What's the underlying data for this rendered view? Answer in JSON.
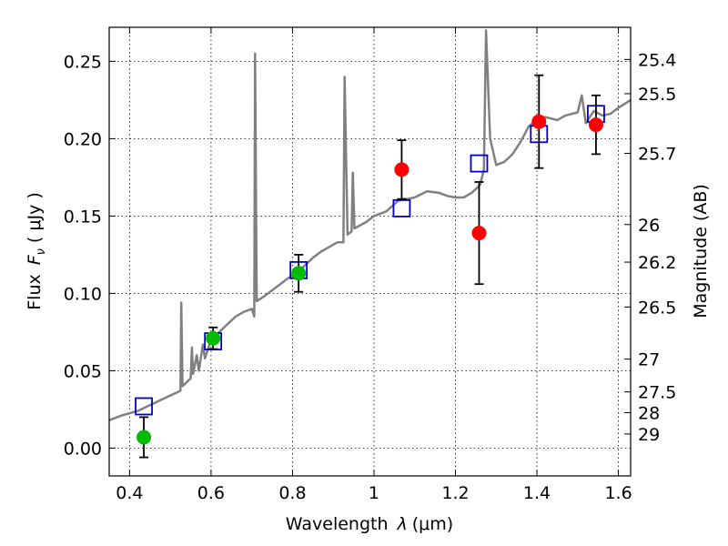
{
  "chart_data": {
    "type": "scatter",
    "title": "",
    "xlabel_text": "Wavelength",
    "xlabel_symbol": "λ",
    "xlabel_unit": "(μm)",
    "ylabel_text": "Flux",
    "ylabel_symbol": "F",
    "ylabel_sub": "ν",
    "ylabel_unit": "( μJy )",
    "y2label": "Magnitude (AB)",
    "xlim": [
      0.35,
      1.63
    ],
    "ylim": [
      -0.018,
      0.272
    ],
    "grid": true,
    "x_ticks": [
      {
        "value": 0.4,
        "label": "0.4"
      },
      {
        "value": 0.6,
        "label": "0.6"
      },
      {
        "value": 0.8,
        "label": "0.8"
      },
      {
        "value": 1.0,
        "label": "1"
      },
      {
        "value": 1.2,
        "label": "1.2"
      },
      {
        "value": 1.4,
        "label": "1.4"
      },
      {
        "value": 1.6,
        "label": "1.6"
      }
    ],
    "y_ticks": [
      {
        "value": 0.0,
        "label": "0.00"
      },
      {
        "value": 0.05,
        "label": "0.05"
      },
      {
        "value": 0.1,
        "label": "0.10"
      },
      {
        "value": 0.15,
        "label": "0.15"
      },
      {
        "value": 0.2,
        "label": "0.20"
      },
      {
        "value": 0.25,
        "label": "0.25"
      }
    ],
    "y2_ticks": [
      {
        "flux": 0.2512,
        "label": "25.4"
      },
      {
        "flux": 0.2291,
        "label": "25.5"
      },
      {
        "flux": 0.1905,
        "label": "25.7"
      },
      {
        "flux": 0.1445,
        "label": "26"
      },
      {
        "flux": 0.1202,
        "label": "26.2"
      },
      {
        "flux": 0.0912,
        "label": "26.5"
      },
      {
        "flux": 0.0575,
        "label": "27"
      },
      {
        "flux": 0.0363,
        "label": "27.5"
      },
      {
        "flux": 0.0229,
        "label": "28"
      },
      {
        "flux": 0.0091,
        "label": "29"
      }
    ],
    "series": [
      {
        "kind": "line",
        "color": "#808080",
        "points": [
          [
            0.35,
            0.018
          ],
          [
            0.38,
            0.021
          ],
          [
            0.42,
            0.024
          ],
          [
            0.46,
            0.029
          ],
          [
            0.5,
            0.034
          ],
          [
            0.525,
            0.037
          ],
          [
            0.527,
            0.094
          ],
          [
            0.53,
            0.04
          ],
          [
            0.55,
            0.045
          ],
          [
            0.553,
            0.065
          ],
          [
            0.556,
            0.048
          ],
          [
            0.565,
            0.06
          ],
          [
            0.57,
            0.05
          ],
          [
            0.58,
            0.067
          ],
          [
            0.585,
            0.058
          ],
          [
            0.6,
            0.07
          ],
          [
            0.62,
            0.075
          ],
          [
            0.64,
            0.08
          ],
          [
            0.66,
            0.085
          ],
          [
            0.68,
            0.088
          ],
          [
            0.7,
            0.09
          ],
          [
            0.706,
            0.085
          ],
          [
            0.708,
            0.255
          ],
          [
            0.712,
            0.095
          ],
          [
            0.73,
            0.098
          ],
          [
            0.75,
            0.102
          ],
          [
            0.77,
            0.106
          ],
          [
            0.79,
            0.11
          ],
          [
            0.81,
            0.113
          ],
          [
            0.83,
            0.118
          ],
          [
            0.85,
            0.123
          ],
          [
            0.87,
            0.127
          ],
          [
            0.89,
            0.13
          ],
          [
            0.91,
            0.133
          ],
          [
            0.925,
            0.133
          ],
          [
            0.928,
            0.24
          ],
          [
            0.935,
            0.138
          ],
          [
            0.945,
            0.14
          ],
          [
            0.948,
            0.178
          ],
          [
            0.952,
            0.142
          ],
          [
            0.98,
            0.146
          ],
          [
            1.0,
            0.15
          ],
          [
            1.03,
            0.153
          ],
          [
            1.06,
            0.16
          ],
          [
            1.1,
            0.162
          ],
          [
            1.13,
            0.166
          ],
          [
            1.16,
            0.165
          ],
          [
            1.18,
            0.163
          ],
          [
            1.2,
            0.162
          ],
          [
            1.22,
            0.162
          ],
          [
            1.24,
            0.165
          ],
          [
            1.26,
            0.17
          ],
          [
            1.27,
            0.18
          ],
          [
            1.275,
            0.27
          ],
          [
            1.285,
            0.2
          ],
          [
            1.3,
            0.183
          ],
          [
            1.32,
            0.185
          ],
          [
            1.34,
            0.19
          ],
          [
            1.36,
            0.198
          ],
          [
            1.38,
            0.208
          ],
          [
            1.4,
            0.212
          ],
          [
            1.42,
            0.214
          ],
          [
            1.45,
            0.212
          ],
          [
            1.47,
            0.215
          ],
          [
            1.5,
            0.217
          ],
          [
            1.51,
            0.228
          ],
          [
            1.52,
            0.21
          ],
          [
            1.54,
            0.218
          ],
          [
            1.56,
            0.215
          ],
          [
            1.58,
            0.216
          ],
          [
            1.6,
            0.22
          ],
          [
            1.63,
            0.225
          ]
        ]
      },
      {
        "kind": "square",
        "color": "#0000cc",
        "points": [
          {
            "x": 0.435,
            "y": 0.027
          },
          {
            "x": 0.605,
            "y": 0.069
          },
          {
            "x": 0.815,
            "y": 0.115
          },
          {
            "x": 1.068,
            "y": 0.155
          },
          {
            "x": 1.258,
            "y": 0.184
          },
          {
            "x": 1.405,
            "y": 0.203
          },
          {
            "x": 1.545,
            "y": 0.216
          }
        ]
      },
      {
        "kind": "circle",
        "color": "#00bb00",
        "points": [
          {
            "x": 0.435,
            "y": 0.007,
            "err": 0.013
          },
          {
            "x": 0.605,
            "y": 0.071,
            "err": 0.007
          },
          {
            "x": 0.815,
            "y": 0.113,
            "err": 0.012
          }
        ]
      },
      {
        "kind": "circle",
        "color": "#ff0000",
        "points": [
          {
            "x": 1.068,
            "y": 0.18,
            "err": 0.019
          },
          {
            "x": 1.258,
            "y": 0.139,
            "err": 0.033
          },
          {
            "x": 1.405,
            "y": 0.211,
            "err": 0.03
          },
          {
            "x": 1.545,
            "y": 0.209,
            "err": 0.019
          }
        ]
      }
    ]
  }
}
